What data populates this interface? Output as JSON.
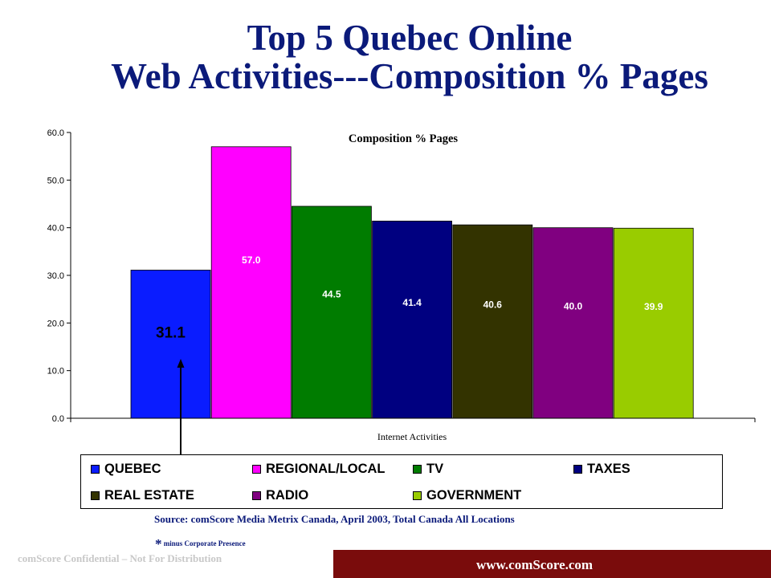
{
  "slide": {
    "title_line1": "Top 5 Quebec Online",
    "title_line2": "Web Activities---Composition % Pages",
    "source": "Source: comScore Media Metrix  Canada, April 2003, Total Canada All Locations",
    "footnote_star": "*",
    "footnote_text": "minus Corporate Presence",
    "confidential": "comScore Confidential – Not For Distribution",
    "url": "www.comScore.com"
  },
  "colors": {
    "title": "#0b1a7a",
    "url_bar": "#7a0c0c"
  },
  "chart_data": {
    "type": "bar",
    "title": "Composition % Pages",
    "xlabel": "Internet Activities",
    "ylabel": "",
    "ylim": [
      0,
      60
    ],
    "yticks": [
      "0.0",
      "10.0",
      "20.0",
      "30.0",
      "40.0",
      "50.0",
      "60.0"
    ],
    "grid": false,
    "legend_placement": "bottom",
    "series": [
      {
        "name": "QUEBEC",
        "value": 31.1,
        "label": "31.1",
        "color": "#0a1cff",
        "label_color": "#000000"
      },
      {
        "name": "REGIONAL/LOCAL",
        "value": 57.0,
        "label": "57.0",
        "color": "#ff00ff",
        "label_color": "#ffffff"
      },
      {
        "name": "TV",
        "value": 44.5,
        "label": "44.5",
        "color": "#007c00",
        "label_color": "#ffffff"
      },
      {
        "name": "TAXES",
        "value": 41.4,
        "label": "41.4",
        "color": "#000080",
        "label_color": "#ffffff"
      },
      {
        "name": "REAL ESTATE",
        "value": 40.6,
        "label": "40.6",
        "color": "#333300",
        "label_color": "#ffffff"
      },
      {
        "name": "RADIO",
        "value": 40.0,
        "label": "40.0",
        "color": "#800080",
        "label_color": "#ffffff"
      },
      {
        "name": "GOVERNMENT",
        "value": 39.9,
        "label": "39.9",
        "color": "#99cc00",
        "label_color": "#ffffff"
      }
    ]
  }
}
